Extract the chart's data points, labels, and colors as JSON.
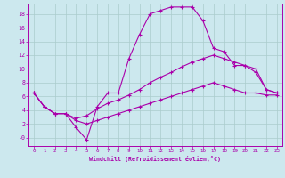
{
  "xlabel": "Windchill (Refroidissement éolien,°C)",
  "bg_color": "#cce8ee",
  "grid_color": "#aacccc",
  "line_color": "#aa00aa",
  "xlim": [
    -0.5,
    23.5
  ],
  "ylim": [
    -1.2,
    19.5
  ],
  "xticks": [
    0,
    1,
    2,
    3,
    4,
    5,
    6,
    7,
    8,
    9,
    10,
    11,
    12,
    13,
    14,
    15,
    16,
    17,
    18,
    19,
    20,
    21,
    22,
    23
  ],
  "yticks": [
    0,
    2,
    4,
    6,
    8,
    10,
    12,
    14,
    16,
    18
  ],
  "line1_x": [
    0,
    1,
    2,
    3,
    4,
    5,
    6,
    7,
    8,
    9,
    10,
    11,
    12,
    13,
    14,
    15,
    16,
    17,
    18,
    19,
    20,
    21,
    22,
    23
  ],
  "line1_y": [
    6.5,
    4.5,
    3.5,
    3.5,
    1.5,
    -0.3,
    4.5,
    6.5,
    6.5,
    11.5,
    15.0,
    18.0,
    18.5,
    19.0,
    19.0,
    19.0,
    17.0,
    13.0,
    12.5,
    10.5,
    10.5,
    9.5,
    7.0,
    6.5
  ],
  "line2_x": [
    0,
    1,
    2,
    3,
    4,
    5,
    6,
    7,
    8,
    9,
    10,
    11,
    12,
    13,
    14,
    15,
    16,
    17,
    18,
    19,
    20,
    21,
    22,
    23
  ],
  "line2_y": [
    6.5,
    4.5,
    3.5,
    3.5,
    2.8,
    3.2,
    4.2,
    5.0,
    5.5,
    6.2,
    7.0,
    8.0,
    8.8,
    9.5,
    10.3,
    11.0,
    11.5,
    12.0,
    11.5,
    11.0,
    10.5,
    10.0,
    7.0,
    6.5
  ],
  "line3_x": [
    0,
    1,
    2,
    3,
    4,
    5,
    6,
    7,
    8,
    9,
    10,
    11,
    12,
    13,
    14,
    15,
    16,
    17,
    18,
    19,
    20,
    21,
    22,
    23
  ],
  "line3_y": [
    6.5,
    4.5,
    3.5,
    3.5,
    2.5,
    2.0,
    2.5,
    3.0,
    3.5,
    4.0,
    4.5,
    5.0,
    5.5,
    6.0,
    6.5,
    7.0,
    7.5,
    8.0,
    7.5,
    7.0,
    6.5,
    6.5,
    6.2,
    6.2
  ]
}
